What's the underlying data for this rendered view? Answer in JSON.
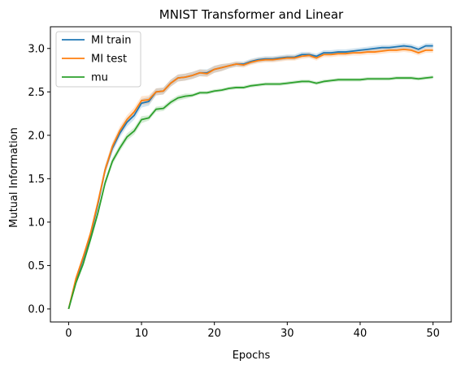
{
  "chart_data": {
    "type": "line",
    "title": "MNIST Transformer and Linear",
    "xlabel": "Epochs",
    "ylabel": "Mutual Information",
    "xlim": [
      -2.5,
      52.5
    ],
    "ylim": [
      -0.15,
      3.25
    ],
    "xticks": [
      0,
      10,
      20,
      30,
      40,
      50
    ],
    "yticks": [
      0.0,
      0.5,
      1.0,
      1.5,
      2.0,
      2.5,
      3.0
    ],
    "xtick_labels": [
      "0",
      "10",
      "20",
      "30",
      "40",
      "50"
    ],
    "ytick_labels": [
      "0.0",
      "0.5",
      "1.0",
      "1.5",
      "2.0",
      "2.5",
      "3.0"
    ],
    "grid": false,
    "legend_position": "top-left",
    "x": [
      0,
      1,
      2,
      3,
      4,
      5,
      6,
      7,
      8,
      9,
      10,
      11,
      12,
      13,
      14,
      15,
      16,
      17,
      18,
      19,
      20,
      21,
      22,
      23,
      24,
      25,
      26,
      27,
      28,
      29,
      30,
      31,
      32,
      33,
      34,
      35,
      36,
      37,
      38,
      39,
      40,
      41,
      42,
      43,
      44,
      45,
      46,
      47,
      48,
      49,
      50
    ],
    "series": [
      {
        "name": "MI train",
        "color": "#1f77b4",
        "band_color": "#1f77b4",
        "values": [
          0.0,
          0.33,
          0.58,
          0.85,
          1.2,
          1.6,
          1.85,
          2.02,
          2.15,
          2.23,
          2.37,
          2.39,
          2.5,
          2.51,
          2.6,
          2.66,
          2.67,
          2.69,
          2.72,
          2.72,
          2.76,
          2.78,
          2.8,
          2.82,
          2.82,
          2.85,
          2.87,
          2.88,
          2.88,
          2.89,
          2.9,
          2.9,
          2.93,
          2.93,
          2.91,
          2.95,
          2.95,
          2.96,
          2.96,
          2.97,
          2.98,
          2.99,
          3.0,
          3.01,
          3.01,
          3.02,
          3.03,
          3.02,
          2.99,
          3.03,
          3.03
        ],
        "band": [
          0.0,
          0.03,
          0.03,
          0.04,
          0.05,
          0.05,
          0.05,
          0.05,
          0.05,
          0.05,
          0.05,
          0.05,
          0.04,
          0.04,
          0.04,
          0.04,
          0.04,
          0.04,
          0.04,
          0.04,
          0.04,
          0.04,
          0.03,
          0.03,
          0.03,
          0.03,
          0.03,
          0.03,
          0.03,
          0.03,
          0.03,
          0.03,
          0.03,
          0.03,
          0.03,
          0.03,
          0.03,
          0.03,
          0.03,
          0.03,
          0.03,
          0.03,
          0.03,
          0.03,
          0.03,
          0.03,
          0.03,
          0.03,
          0.03,
          0.03,
          0.03
        ]
      },
      {
        "name": "MI test",
        "color": "#ff7f0e",
        "band_color": "#ff7f0e",
        "values": [
          0.0,
          0.35,
          0.6,
          0.87,
          1.22,
          1.6,
          1.87,
          2.05,
          2.18,
          2.27,
          2.4,
          2.41,
          2.5,
          2.51,
          2.6,
          2.66,
          2.67,
          2.69,
          2.72,
          2.71,
          2.76,
          2.78,
          2.8,
          2.82,
          2.81,
          2.84,
          2.86,
          2.87,
          2.87,
          2.88,
          2.89,
          2.89,
          2.91,
          2.92,
          2.89,
          2.93,
          2.93,
          2.94,
          2.94,
          2.95,
          2.95,
          2.96,
          2.96,
          2.97,
          2.98,
          2.98,
          2.99,
          2.98,
          2.95,
          2.98,
          2.98
        ],
        "band": [
          0.0,
          0.03,
          0.03,
          0.04,
          0.05,
          0.05,
          0.05,
          0.05,
          0.05,
          0.05,
          0.05,
          0.05,
          0.04,
          0.04,
          0.04,
          0.04,
          0.04,
          0.04,
          0.04,
          0.04,
          0.04,
          0.04,
          0.03,
          0.03,
          0.03,
          0.03,
          0.03,
          0.03,
          0.03,
          0.03,
          0.03,
          0.03,
          0.03,
          0.03,
          0.03,
          0.03,
          0.03,
          0.03,
          0.03,
          0.03,
          0.03,
          0.03,
          0.03,
          0.03,
          0.03,
          0.03,
          0.03,
          0.03,
          0.03,
          0.03,
          0.03
        ]
      },
      {
        "name": "mu",
        "color": "#2ca02c",
        "band_color": "#2ca02c",
        "values": [
          0.0,
          0.3,
          0.52,
          0.8,
          1.1,
          1.45,
          1.7,
          1.85,
          1.98,
          2.05,
          2.18,
          2.2,
          2.3,
          2.31,
          2.38,
          2.43,
          2.45,
          2.46,
          2.49,
          2.49,
          2.51,
          2.52,
          2.54,
          2.55,
          2.55,
          2.57,
          2.58,
          2.59,
          2.59,
          2.59,
          2.6,
          2.61,
          2.62,
          2.62,
          2.6,
          2.62,
          2.63,
          2.64,
          2.64,
          2.64,
          2.64,
          2.65,
          2.65,
          2.65,
          2.65,
          2.66,
          2.66,
          2.66,
          2.65,
          2.66,
          2.67
        ],
        "band": [
          0.0,
          0.02,
          0.03,
          0.03,
          0.04,
          0.04,
          0.04,
          0.04,
          0.04,
          0.04,
          0.04,
          0.03,
          0.03,
          0.03,
          0.03,
          0.03,
          0.03,
          0.02,
          0.02,
          0.02,
          0.02,
          0.02,
          0.02,
          0.02,
          0.02,
          0.02,
          0.02,
          0.02,
          0.02,
          0.02,
          0.02,
          0.02,
          0.02,
          0.02,
          0.02,
          0.02,
          0.02,
          0.02,
          0.02,
          0.02,
          0.02,
          0.02,
          0.02,
          0.02,
          0.02,
          0.02,
          0.02,
          0.02,
          0.02,
          0.02,
          0.02
        ]
      }
    ]
  }
}
